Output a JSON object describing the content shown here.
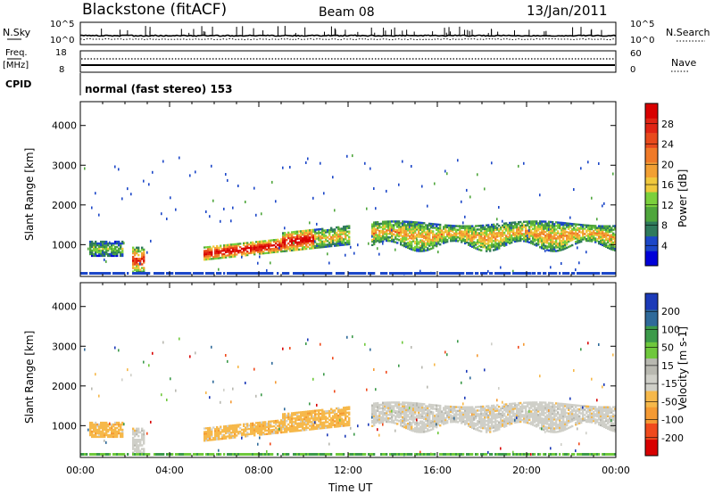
{
  "header": {
    "site": "Blackstone (fitACF)",
    "beam": "Beam 08",
    "date": "13/Jan/2011"
  },
  "noise_panel": {
    "left_label": "N.Sky",
    "left_ticks": [
      "10^5",
      "10^0"
    ],
    "right_label": "N.Search",
    "right_ticks": [
      "10^5",
      "10^0"
    ]
  },
  "freq_panel": {
    "left_label_1": "Freq.",
    "left_label_2": "[MHz]",
    "left_ticks": [
      "18",
      "8"
    ],
    "right_label": "Nave",
    "right_ticks": [
      "60",
      "0"
    ]
  },
  "cpid_panel": {
    "label": "CPID",
    "text": "normal (fast stereo) 153"
  },
  "colors": {
    "power": [
      "#0000d8",
      "#1c47c8",
      "#2f7a5c",
      "#4fa63c",
      "#7bd03c",
      "#f0c83c",
      "#f2a033",
      "#f07a28",
      "#e84a1c",
      "#e02414",
      "#d80000"
    ],
    "velocity": [
      "#d80000",
      "#f04a1c",
      "#f59a33",
      "#f6b84a",
      "#cfcfc8",
      "#b8b8b0",
      "#6fc83c",
      "#3c9a4a",
      "#2f6a9a",
      "#1c3ab8"
    ]
  },
  "chart_data": [
    {
      "type": "heatmap",
      "name": "power",
      "ylabel": "Slant Range [km]",
      "yticks": [
        "1000",
        "2000",
        "3000",
        "4000"
      ],
      "ylim": [
        200,
        4600
      ],
      "xlim": [
        0,
        24
      ],
      "colorbar_label": "Power [dB]",
      "colorbar_ticks": [
        "4",
        "8",
        "12",
        "16",
        "20",
        "24",
        "28"
      ],
      "colorbar_range": [
        0,
        32
      ],
      "echo_bands": [
        {
          "t0": 0.5,
          "t1": 1.8,
          "r0": 700,
          "r1": 1100,
          "peak": 16
        },
        {
          "t0": 2.3,
          "t1": 2.8,
          "r0": 350,
          "r1": 900,
          "peak": 24
        },
        {
          "t0": 5.5,
          "t1": 12.0,
          "r0": 650,
          "r1": 1300,
          "peak": 30
        },
        {
          "t0": 13.0,
          "t1": 24.0,
          "r0": 850,
          "r1": 1500,
          "peak": 20
        }
      ]
    },
    {
      "type": "heatmap",
      "name": "velocity",
      "xlabel": "Time UT",
      "ylabel": "Slant Range [km]",
      "xticks": [
        "00:00",
        "04:00",
        "08:00",
        "12:00",
        "16:00",
        "20:00",
        "00:00"
      ],
      "yticks": [
        "1000",
        "2000",
        "3000",
        "4000"
      ],
      "ylim": [
        200,
        4600
      ],
      "xlim": [
        0,
        24
      ],
      "colorbar_label": "Velocity [m s-1]",
      "colorbar_ticks": [
        "-200",
        "-100",
        "-50",
        "-15",
        "15",
        "50",
        "100",
        "200"
      ]
    }
  ]
}
